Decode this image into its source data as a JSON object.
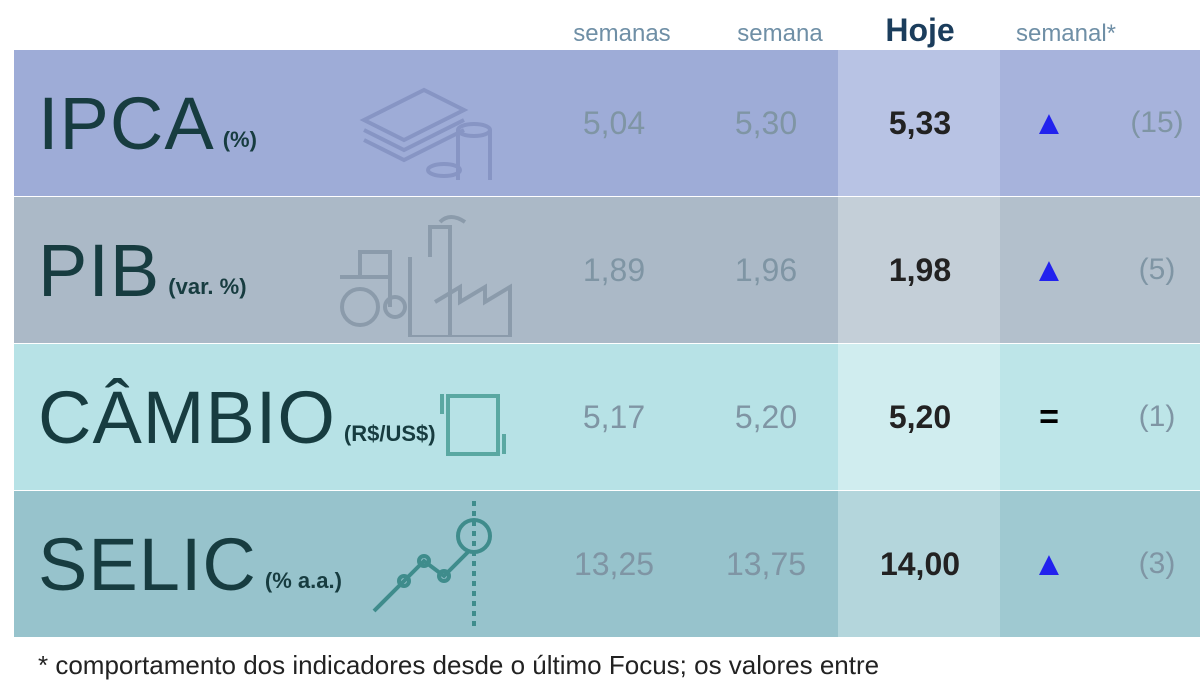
{
  "header": {
    "columns": [
      "semanas",
      "semana",
      "Hoje",
      "semanal*"
    ]
  },
  "table": {
    "rows": [
      {
        "name": "IPCA",
        "unit": "(%)",
        "values": [
          "5,04",
          "5,30",
          "5,33"
        ],
        "trend": "▲",
        "count": "(15)"
      },
      {
        "name": "PIB",
        "unit": "(var. %)",
        "values": [
          "1,89",
          "1,96",
          "1,98"
        ],
        "trend": "▲",
        "count": "(5)"
      },
      {
        "name": "CÂMBIO",
        "unit": "(R$/US$)",
        "values": [
          "5,17",
          "5,20",
          "5,20"
        ],
        "trend": "=",
        "count": "(1)"
      },
      {
        "name": "SELIC",
        "unit": "(% a.a.)",
        "values": [
          "13,25",
          "13,75",
          "14,00"
        ],
        "trend": "▲",
        "count": "(3)"
      }
    ]
  },
  "footer": {
    "note": "* comportamento dos indicadores desde o último Focus; os valores entre"
  }
}
